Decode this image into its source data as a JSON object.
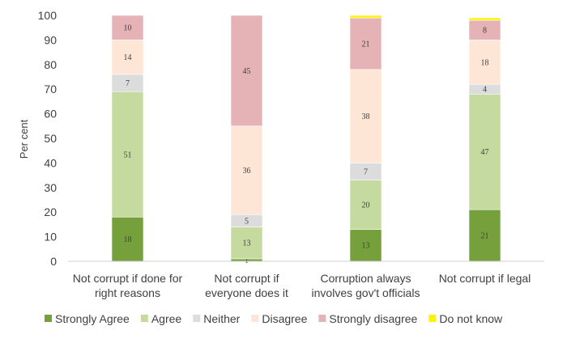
{
  "chart_data": {
    "type": "bar",
    "stacked": true,
    "ylabel": "Per cent",
    "ylim": [
      0,
      100
    ],
    "yticks": [
      0,
      10,
      20,
      30,
      40,
      50,
      60,
      70,
      80,
      90,
      100
    ],
    "grid": false,
    "legend": "bottom",
    "categories": [
      [
        "Not corrupt if done for",
        "right reasons"
      ],
      [
        "Not corrupt if",
        "everyone does it"
      ],
      [
        "Corruption always",
        "involves gov't officials"
      ],
      [
        "Not corrupt if legal"
      ]
    ],
    "series": [
      {
        "name": "Strongly Agree",
        "color": "#76A03C",
        "values": [
          18,
          1,
          13,
          21
        ],
        "labels": [
          "18",
          "1",
          "13",
          "21"
        ]
      },
      {
        "name": "Agree",
        "color": "#C4DA9E",
        "values": [
          51,
          13,
          20,
          47
        ],
        "labels": [
          "51",
          "13",
          "20",
          "47"
        ]
      },
      {
        "name": "Neither",
        "color": "#DCDCDC",
        "values": [
          7,
          5,
          7,
          4
        ],
        "labels": [
          "7",
          "5",
          "7",
          "4"
        ]
      },
      {
        "name": "Disagree",
        "color": "#FDE6D5",
        "values": [
          14,
          36,
          38,
          18
        ],
        "labels": [
          "14",
          "36",
          "38",
          "18"
        ]
      },
      {
        "name": "Strongly disagree",
        "color": "#E5B3B6",
        "values": [
          10,
          45,
          21,
          8
        ],
        "labels": [
          "10",
          "45",
          "21",
          "8"
        ]
      },
      {
        "name": "Do not know",
        "color": "#FFF200",
        "values": [
          0,
          0,
          1,
          1
        ],
        "labels": [
          "",
          "",
          "",
          ""
        ]
      }
    ]
  }
}
